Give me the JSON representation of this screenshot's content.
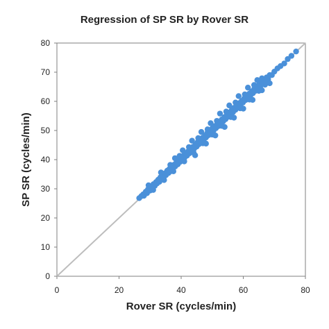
{
  "chart_data": {
    "type": "scatter",
    "title": "Regression of SP SR by Rover SR",
    "xlabel": "Rover SR (cycles/min)",
    "ylabel": "SP SR (cycles/min)",
    "xlim": [
      0,
      80
    ],
    "ylim": [
      0,
      80
    ],
    "xticks": [
      "0",
      "20",
      "40",
      "60",
      "80"
    ],
    "yticks": [
      "0",
      "10",
      "20",
      "30",
      "40",
      "50",
      "60",
      "70",
      "80"
    ],
    "grid": false,
    "identity_line": {
      "from": [
        0,
        0
      ],
      "to": [
        80,
        80
      ],
      "color": "#bdbdbd"
    },
    "series": [
      {
        "color": "#4a90d9",
        "points": [
          [
            26.5,
            26.8
          ],
          [
            27.2,
            27.5
          ],
          [
            27.8,
            28.1
          ],
          [
            28.0,
            27.6
          ],
          [
            28.6,
            29.0
          ],
          [
            29.0,
            28.5
          ],
          [
            29.3,
            29.8
          ],
          [
            29.8,
            30.1
          ],
          [
            30.0,
            29.4
          ],
          [
            30.4,
            30.9
          ],
          [
            30.8,
            30.3
          ],
          [
            31.1,
            31.6
          ],
          [
            31.5,
            31.0
          ],
          [
            31.9,
            32.3
          ],
          [
            32.2,
            31.8
          ],
          [
            32.6,
            33.1
          ],
          [
            33.0,
            32.4
          ],
          [
            33.3,
            33.9
          ],
          [
            33.7,
            33.2
          ],
          [
            34.0,
            34.6
          ],
          [
            34.4,
            34.0
          ],
          [
            34.8,
            35.3
          ],
          [
            35.1,
            34.7
          ],
          [
            35.5,
            36.2
          ],
          [
            35.9,
            35.4
          ],
          [
            36.2,
            36.8
          ],
          [
            36.6,
            36.0
          ],
          [
            37.0,
            37.6
          ],
          [
            37.4,
            36.9
          ],
          [
            37.8,
            38.3
          ],
          [
            38.1,
            37.7
          ],
          [
            38.5,
            39.1
          ],
          [
            38.9,
            38.4
          ],
          [
            39.2,
            39.8
          ],
          [
            39.6,
            39.2
          ],
          [
            40.0,
            40.6
          ],
          [
            40.4,
            39.9
          ],
          [
            40.8,
            41.4
          ],
          [
            41.1,
            40.7
          ],
          [
            41.5,
            42.1
          ],
          [
            41.9,
            41.4
          ],
          [
            42.3,
            42.9
          ],
          [
            42.7,
            42.2
          ],
          [
            43.0,
            43.7
          ],
          [
            43.4,
            43.0
          ],
          [
            43.8,
            44.4
          ],
          [
            44.2,
            43.8
          ],
          [
            44.6,
            45.2
          ],
          [
            45.0,
            44.5
          ],
          [
            45.3,
            46.0
          ],
          [
            45.7,
            45.3
          ],
          [
            46.1,
            46.8
          ],
          [
            46.5,
            46.0
          ],
          [
            46.9,
            47.5
          ],
          [
            47.3,
            46.9
          ],
          [
            47.7,
            48.3
          ],
          [
            48.0,
            47.6
          ],
          [
            48.4,
            49.1
          ],
          [
            48.8,
            48.4
          ],
          [
            49.2,
            49.9
          ],
          [
            49.6,
            49.1
          ],
          [
            50.0,
            50.7
          ],
          [
            50.4,
            49.9
          ],
          [
            50.8,
            51.5
          ],
          [
            51.2,
            50.8
          ],
          [
            51.6,
            52.3
          ],
          [
            52.0,
            51.5
          ],
          [
            52.3,
            53.0
          ],
          [
            52.7,
            52.4
          ],
          [
            53.1,
            53.8
          ],
          [
            53.5,
            53.1
          ],
          [
            53.9,
            54.6
          ],
          [
            54.3,
            53.9
          ],
          [
            54.7,
            55.4
          ],
          [
            55.1,
            54.7
          ],
          [
            55.5,
            56.2
          ],
          [
            55.9,
            55.5
          ],
          [
            56.3,
            57.0
          ],
          [
            56.7,
            56.3
          ],
          [
            57.1,
            57.8
          ],
          [
            57.5,
            57.1
          ],
          [
            57.9,
            58.6
          ],
          [
            58.3,
            58.0
          ],
          [
            58.7,
            59.4
          ],
          [
            59.1,
            58.8
          ],
          [
            59.5,
            60.2
          ],
          [
            59.9,
            59.6
          ],
          [
            60.3,
            61.0
          ],
          [
            60.7,
            60.4
          ],
          [
            61.1,
            61.8
          ],
          [
            61.5,
            61.2
          ],
          [
            61.9,
            62.6
          ],
          [
            62.3,
            62.0
          ],
          [
            62.7,
            63.4
          ],
          [
            63.1,
            62.8
          ],
          [
            63.5,
            64.2
          ],
          [
            63.9,
            63.6
          ],
          [
            64.3,
            65.0
          ],
          [
            64.7,
            64.4
          ],
          [
            65.1,
            65.8
          ],
          [
            65.5,
            65.2
          ],
          [
            65.9,
            66.6
          ],
          [
            66.3,
            66.0
          ],
          [
            66.7,
            67.4
          ],
          [
            67.1,
            66.8
          ],
          [
            67.5,
            68.2
          ],
          [
            68.0,
            67.6
          ],
          [
            68.5,
            69.0
          ],
          [
            69.2,
            69.0
          ],
          [
            70.0,
            70.2
          ],
          [
            71.0,
            71.3
          ],
          [
            72.0,
            72.1
          ],
          [
            73.2,
            73.0
          ],
          [
            74.3,
            74.5
          ],
          [
            75.5,
            75.6
          ],
          [
            77.0,
            77.1
          ],
          [
            29.5,
            31.2
          ],
          [
            31.0,
            29.6
          ],
          [
            33.5,
            35.6
          ],
          [
            34.5,
            33.0
          ],
          [
            36.5,
            38.2
          ],
          [
            37.5,
            36.0
          ],
          [
            39.5,
            41.3
          ],
          [
            41.0,
            39.4
          ],
          [
            42.5,
            44.3
          ],
          [
            44.0,
            42.4
          ],
          [
            45.5,
            47.4
          ],
          [
            47.0,
            45.6
          ],
          [
            48.5,
            50.4
          ],
          [
            50.0,
            48.6
          ],
          [
            51.5,
            53.3
          ],
          [
            53.0,
            51.6
          ],
          [
            54.5,
            56.5
          ],
          [
            56.0,
            54.6
          ],
          [
            57.5,
            59.6
          ],
          [
            59.0,
            57.6
          ],
          [
            60.5,
            62.4
          ],
          [
            62.0,
            60.6
          ],
          [
            63.5,
            65.6
          ],
          [
            65.0,
            63.6
          ],
          [
            66.0,
            67.9
          ],
          [
            67.0,
            65.7
          ],
          [
            40.5,
            43.2
          ],
          [
            38.0,
            40.5
          ],
          [
            43.5,
            46.5
          ],
          [
            46.5,
            49.5
          ],
          [
            49.5,
            52.5
          ],
          [
            52.5,
            55.8
          ],
          [
            55.5,
            58.6
          ],
          [
            58.5,
            61.8
          ],
          [
            61.5,
            64.7
          ],
          [
            64.5,
            67.3
          ],
          [
            44.5,
            41.5
          ],
          [
            48.0,
            45.5
          ],
          [
            51.0,
            48.3
          ],
          [
            54.0,
            51.2
          ],
          [
            57.0,
            54.4
          ],
          [
            60.0,
            57.5
          ],
          [
            63.0,
            60.5
          ],
          [
            66.0,
            63.8
          ],
          [
            68.5,
            66.2
          ]
        ]
      }
    ]
  }
}
